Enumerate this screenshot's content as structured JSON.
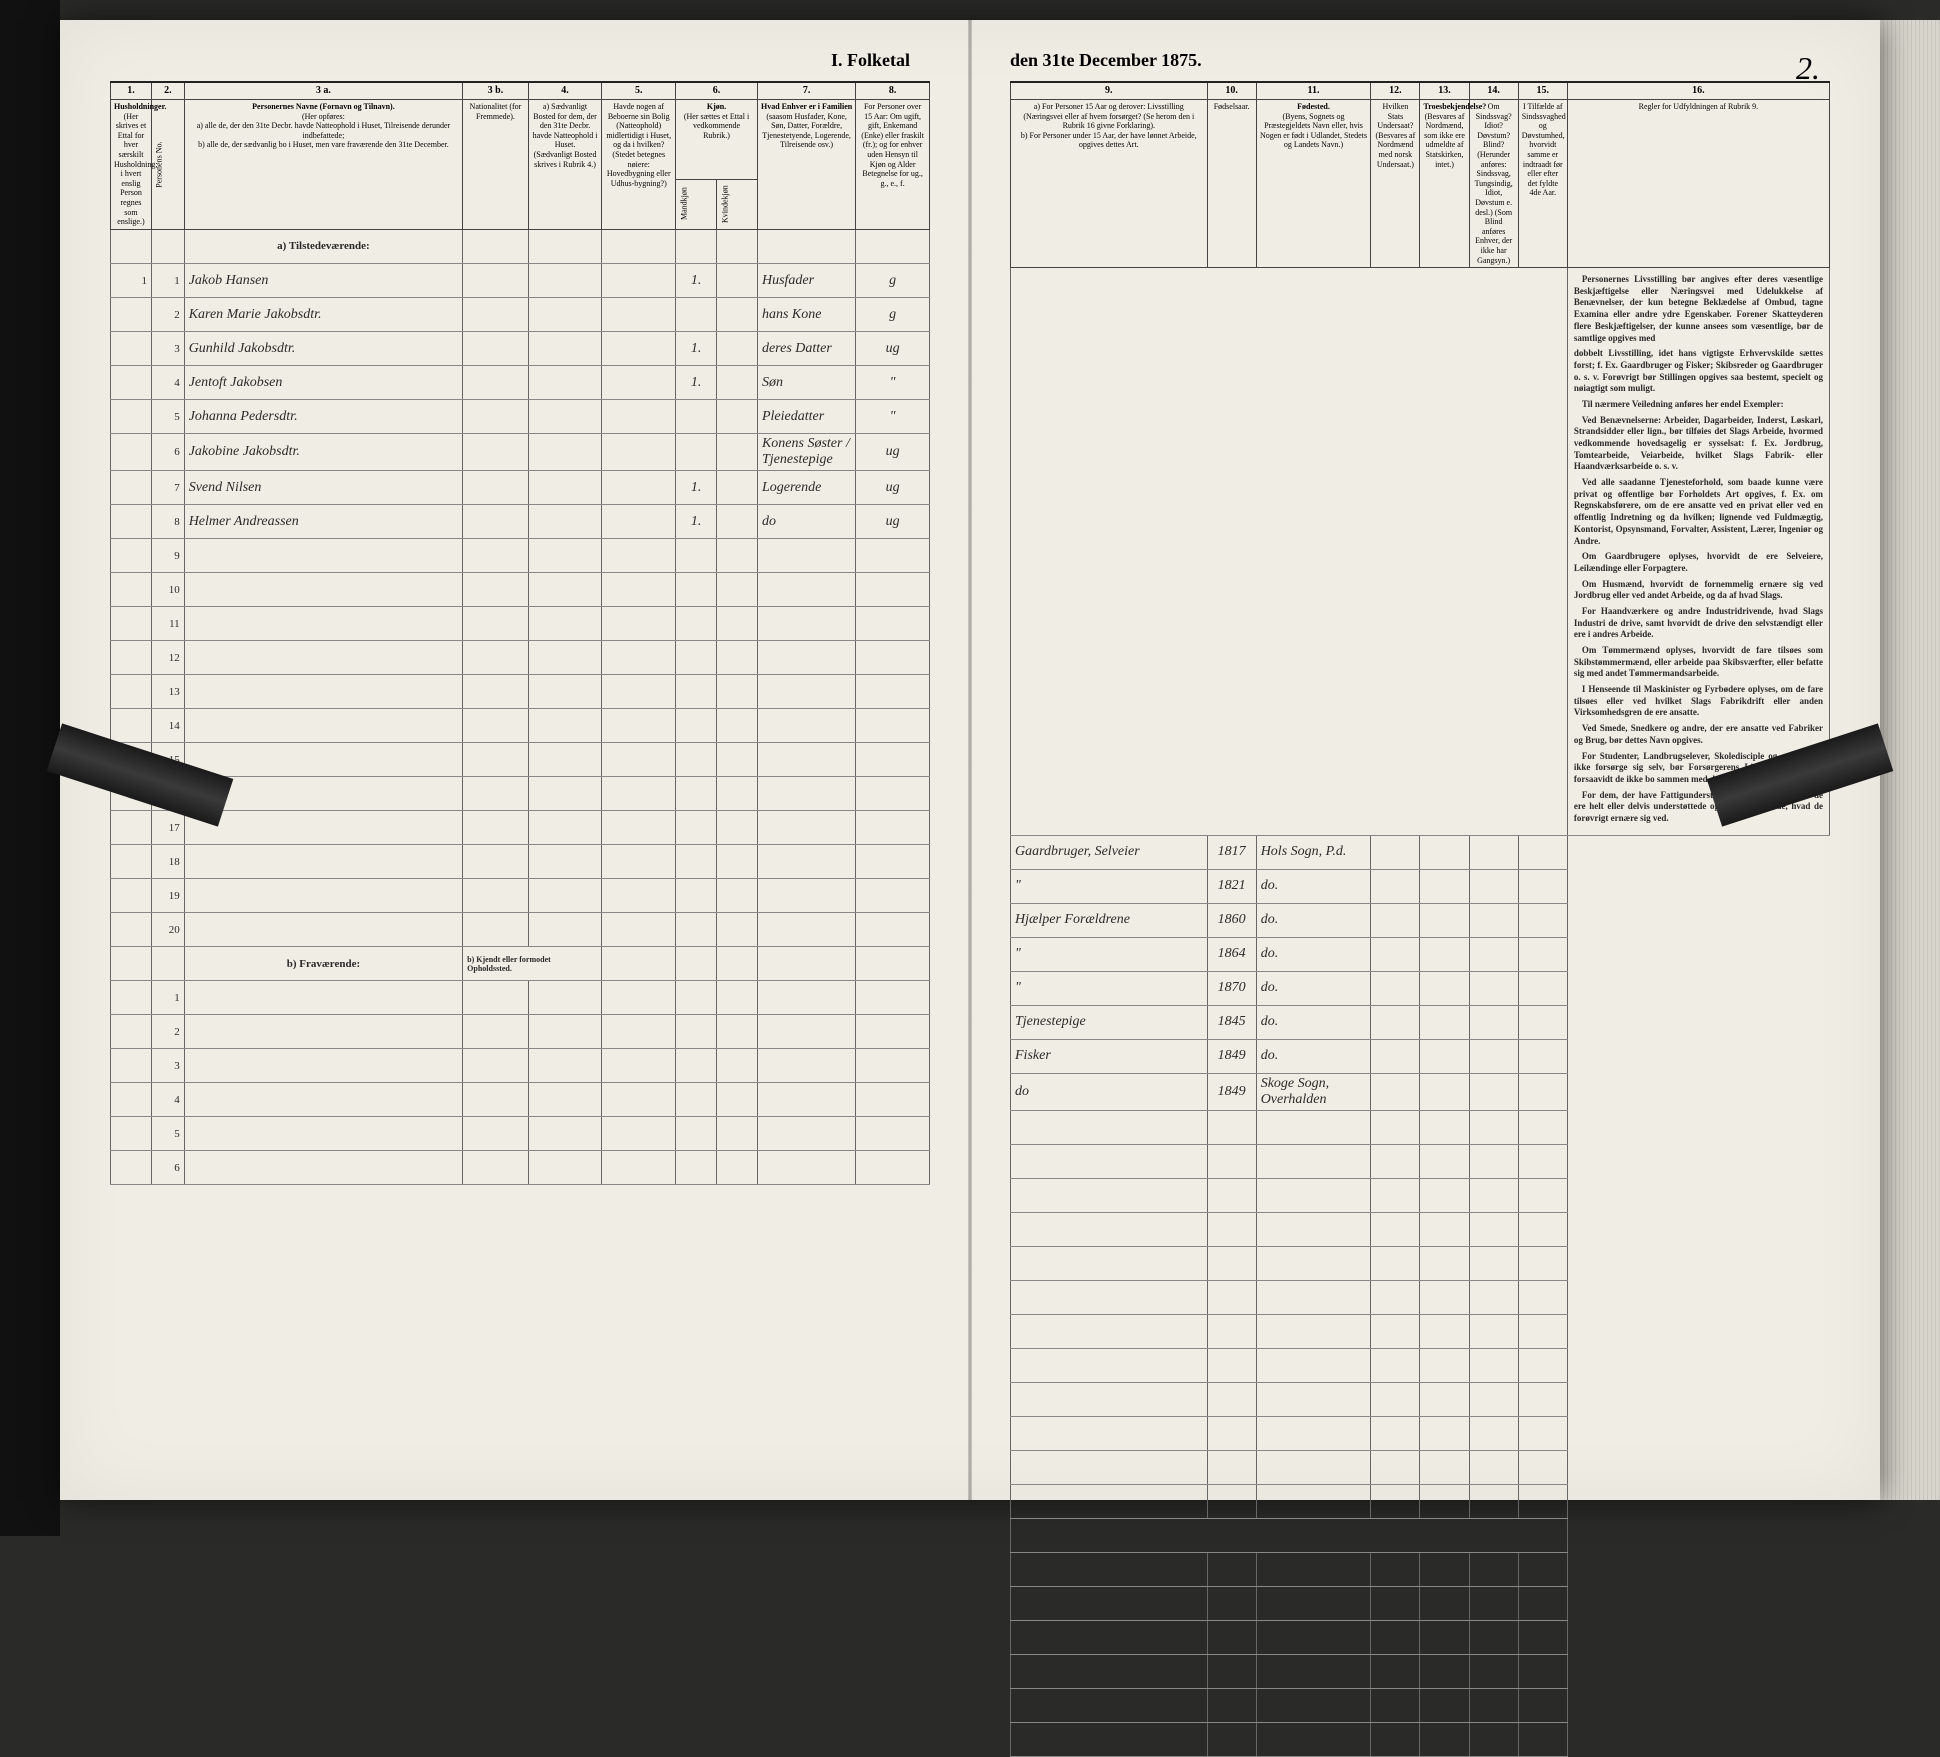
{
  "colors": {
    "page_bg": "#f0ede4",
    "ink": "#2a2a2a",
    "rule": "#666",
    "heavy_rule": "#222",
    "outer_bg": "#2a2a28",
    "clip": "#1a1a1a"
  },
  "typography": {
    "body_family": "Georgia, 'Times New Roman', serif",
    "handwriting_family": "'Brush Script MT', cursive",
    "header_fontsize_pt": 8,
    "title_fontsize_pt": 14,
    "hand_fontsize_pt": 12
  },
  "title_left": "I.  Folketal",
  "title_right": "den 31te December 1875.",
  "page_number_right": "2.",
  "left_columns": {
    "nums": [
      "1.",
      "2.",
      "3 a.",
      "3 b.",
      "4.",
      "5.",
      "6.",
      "7.",
      "8."
    ],
    "h1": "Husholdninger.",
    "h1_text": "(Her skrives et Ettal for hver særskilt Husholdning; i hvert enslig Person regnes som enslige.)",
    "h2": "Personernes Navne (Fornavn og Tilnavn).",
    "h2_sub": "(Her opføres:",
    "h2_a": "a) alle de, der den 31te Decbr. havde Natteophold i Huset, Tilreisende derunder indbefattede;",
    "h2_b": "b) alle de, der sædvanlig bo i Huset, men vare fraværende den 31te December.",
    "h3b": "Nationalitet (for Fremmede).",
    "h4_head": "a) Sædvanligt Bosted for dem, der den 31te Decbr. havde Natteophold i Huset.",
    "h4_sub": "(Sædvanligt Bosted skrives i Rubrik 4.)",
    "h5_head": "Havde nogen af Beboerne sin Bolig (Natteophold) midlertidigt i Huset, og da i hvilken?",
    "h5_sub": "(Stedet betegnes nøiere: Hovedbygning eller Udhus-bygning?)",
    "h6_head": "Kjøn.",
    "h6_sub": "(Her sættes et Ettal i vedkommende Rubrik.)",
    "h6_m": "Mandkjøn",
    "h6_k": "Kvindekjøn",
    "h7_head": "Hvad Enhver er i Familien",
    "h7_sub": "(saasom Husfader, Kone, Søn, Datter, Forældre, Tjenestetyende, Logerende, Tilreisende osv.)",
    "h8_head": "For Personer over 15 Aar: Om ugift, gift, Enkemand (Enke) eller fraskilt (fr.); og for enhver uden Hensyn til Kjøn og Alder Betegnelse for ug., g., e., f."
  },
  "right_columns": {
    "nums": [
      "9.",
      "10.",
      "11.",
      "12.",
      "13.",
      "14.",
      "15.",
      "16."
    ],
    "h9_a": "a) For Personer 15 Aar og derover: Livsstilling (Næringsvei eller af hvem forsørget? (Se herom den i Rubrik 16 givne Forklaring).",
    "h9_b": "b) For Personer under 15 Aar, der have lønnet Arbeide, opgives dettes Art.",
    "h10": "Fødselsaar.",
    "h11_head": "Fødested.",
    "h11_sub": "(Byens, Sognets og Præstegjeldets Navn eller, hvis Nogen er født i Udlandet, Stedets og Landets Navn.)",
    "h12_head": "Hvilken Stats Undersaat?",
    "h12_sub": "(Besvares af Nordmænd med norsk Undersaat.)",
    "h13_head": "Troesbekjendelse?",
    "h13_sub": "(Besvares af Nordmænd, som ikke ere udmeldte af Statskirken, intet.)",
    "h14_head": "Om Sindssvag? Idiot? Døvstum? Blind?",
    "h14_sub": "(Herunder anføres: Sindssvag, Tungsindig, Idiot, Døvstum e. desl.) (Som Blind anføres Enhver, der ikke har Gangsyn.)",
    "h15_head": "I Tilfælde af Sindssvaghed og Døvstumhed, hvorvidt samme er indtraadt før eller efter det fyldte 4de Aar.",
    "h16_head": "Regler for Udfyldningen af Rubrik 9."
  },
  "section_a": "a) Tilstedeværende:",
  "section_b": "b) Fraværende:",
  "section_b_note": "b) Kjendt eller formodet Opholdssted.",
  "rows": [
    {
      "n": "1",
      "hh": "1",
      "name": "Jakob Hansen",
      "col6": "1.",
      "rel": "Husfader",
      "ms": "g",
      "liv": "Gaardbruger, Selveier",
      "year": "1817",
      "birthplace": "Hols Sogn, P.d."
    },
    {
      "n": "2",
      "hh": "",
      "name": "Karen Marie Jakobsdtr.",
      "col6": "",
      "rel": "hans Kone",
      "ms": "g",
      "liv": "\"",
      "year": "1821",
      "birthplace": "do."
    },
    {
      "n": "3",
      "hh": "",
      "name": "Gunhild Jakobsdtr.",
      "col6": "1.",
      "rel": "deres Datter",
      "ms": "ug",
      "liv": "Hjælper Forældrene",
      "year": "1860",
      "birthplace": "do."
    },
    {
      "n": "4",
      "hh": "",
      "name": "Jentoft Jakobsen",
      "col6": "1.",
      "rel": "Søn",
      "ms": "\"",
      "liv": "\"",
      "year": "1864",
      "birthplace": "do."
    },
    {
      "n": "5",
      "hh": "",
      "name": "Johanna Pedersdtr.",
      "col6": "",
      "rel": "Pleiedatter",
      "ms": "\"",
      "liv": "\"",
      "year": "1870",
      "birthplace": "do."
    },
    {
      "n": "6",
      "hh": "",
      "name": "Jakobine Jakobsdtr.",
      "col6": "",
      "rel": "Konens Søster / Tjenestepige",
      "ms": "ug",
      "liv": "Tjenestepige",
      "year": "1845",
      "birthplace": "do."
    },
    {
      "n": "7",
      "hh": "",
      "name": "Svend Nilsen",
      "col6": "1.",
      "rel": "Logerende",
      "ms": "ug",
      "liv": "Fisker",
      "year": "1849",
      "birthplace": "do."
    },
    {
      "n": "8",
      "hh": "",
      "name": "Helmer Andreassen",
      "col6": "1.",
      "rel": "do",
      "ms": "ug",
      "liv": "do",
      "year": "1849",
      "birthplace": "Skoge Sogn, Overhalden"
    }
  ],
  "empty_rows_a": [
    "9",
    "10",
    "11",
    "12",
    "13",
    "14",
    "15",
    "16",
    "17",
    "18",
    "19",
    "20"
  ],
  "empty_rows_b": [
    "1",
    "2",
    "3",
    "4",
    "5",
    "6"
  ],
  "instructions": {
    "p1": "Personernes Livsstilling bør angives efter deres væsentlige Beskjæftigelse eller Næringsvei med Udelukkelse af Benævnelser, der kun betegne Beklædelse af Ombud, tagne Examina eller andre ydre Egenskaber. Forener Skatteyderen flere Beskjæftigelser, der kunne ansees som væsentlige, bør de samtlige opgives med",
    "p1b": "dobbelt Livsstilling, idet hans vigtigste Erhvervskilde sættes forst; f. Ex. Gaardbruger og Fisker; Skibsreder og Gaardbruger o. s. v. Forøvrigt bør Stillingen opgives saa bestemt, specielt og nøiagtigt som muligt.",
    "p2": "Til nærmere Veiledning anføres her endel Exempler:",
    "p3": "Ved Benævnelserne: Arbeider, Dagarbeider, Inderst, Løskarl, Strandsidder eller lign., bør tilføies det Slags Arbeide, hvormed vedkommende hovedsagelig er sysselsat: f. Ex. Jordbrug, Tomtearbeide, Veiarbeide, hvilket Slags Fabrik- eller Haandværksarbeide o. s. v.",
    "p4": "Ved alle saadanne Tjenesteforhold, som baade kunne være privat og offentlige bør Forholdets Art opgives, f. Ex. om Regnskabsførere, om de ere ansatte ved en privat eller ved en offentlig Indretning og da hvilken; lignende ved Fuldmægtig, Kontorist, Opsynsmand, Forvalter, Assistent, Lærer, Ingeniør og Andre.",
    "p5": "Om Gaardbrugere oplyses, hvorvidt de ere Selveiere, Leilændinge eller Forpagtere.",
    "p6": "Om Husmænd, hvorvidt de fornemmelig ernære sig ved Jordbrug eller ved andet Arbeide, og da af hvad Slags.",
    "p7": "For Haandværkere og andre Industridrivende, hvad Slags Industri de drive, samt hvorvidt de drive den selvstændigt eller ere i andres Arbeide.",
    "p8": "Om Tømmermænd oplyses, hvorvidt de fare tilsøes som Skibstømmermænd, eller arbeide paa Skibsværfter, eller befatte sig med andet Tømmermandsarbeide.",
    "p9": "I Henseende til Maskinister og Fyrbødere oplyses, om de fare tilsøes eller ved hvilket Slags Fabrikdrift eller anden Virksomhedsgren de ere ansatte.",
    "p10": "Ved Smede, Snedkere og andre, der ere ansatte ved Fabriker og Brug, bør dettes Navn opgives.",
    "p11": "For Studenter, Landbrugselever, Skoledisciple og andre, der ikke forsørge sig selv, bør Forsørgerens Livsstilling opgives, forsaavidt de ikke bo sammen med denne.",
    "p12": "For dem, der have Fattigunderstøttelse, oplyses, hvorvidt de ere helt eller delvis understøttede og i sidste Tilfælde, hvad de forøvrigt ernære sig ved."
  },
  "left_col_widths_pct": [
    5,
    4,
    34,
    8,
    9,
    9,
    5,
    5,
    12,
    9
  ],
  "right_col_widths_pct": [
    24,
    6,
    14,
    6,
    6,
    6,
    6,
    32
  ]
}
